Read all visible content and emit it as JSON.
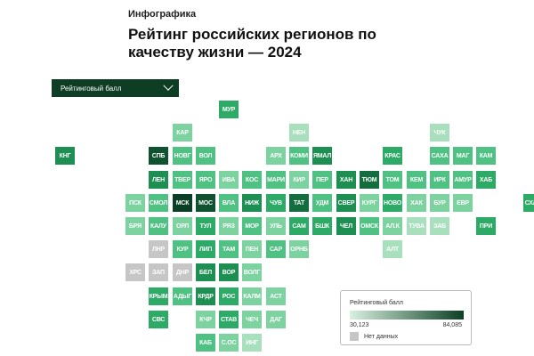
{
  "kicker": "Инфографика",
  "title": "Рейтинг российских регионов по качеству жизни — 2024",
  "selector": {
    "label": "Рейтинговый балл",
    "icon": "chevron-down-icon"
  },
  "legend": {
    "title": "Рейтинговый балл",
    "min": "30,123",
    "max": "84,085",
    "no_data": "Нет данных",
    "color_low": "#d8f1e1",
    "color_high": "#0b3f25",
    "color_no_data": "#c6c6c6"
  },
  "regions": [
    {
      "code": "МУР",
      "col": 7,
      "row": 0,
      "level": 4
    },
    {
      "code": "КАР",
      "col": 5,
      "row": 1,
      "level": 2
    },
    {
      "code": "НЕН",
      "col": 10,
      "row": 1,
      "level": 1
    },
    {
      "code": "ЧУК",
      "col": 16,
      "row": 1,
      "level": 1
    },
    {
      "code": "КНГ",
      "col": 0,
      "row": 2,
      "level": 5
    },
    {
      "code": "СПБ",
      "col": 4,
      "row": 2,
      "level": 7
    },
    {
      "code": "НОВГ",
      "col": 5,
      "row": 2,
      "level": 3
    },
    {
      "code": "ВОЛ",
      "col": 6,
      "row": 2,
      "level": 3
    },
    {
      "code": "АРХ",
      "col": 9,
      "row": 2,
      "level": 2
    },
    {
      "code": "КОМИ",
      "col": 10,
      "row": 2,
      "level": 3
    },
    {
      "code": "ЯМАЛ",
      "col": 11,
      "row": 2,
      "level": 5
    },
    {
      "code": "КРАС",
      "col": 14,
      "row": 2,
      "level": 4
    },
    {
      "code": "САХА",
      "col": 16,
      "row": 2,
      "level": 3
    },
    {
      "code": "МАГ",
      "col": 17,
      "row": 2,
      "level": 3
    },
    {
      "code": "КАМ",
      "col": 18,
      "row": 2,
      "level": 3
    },
    {
      "code": "ЛЕН",
      "col": 4,
      "row": 3,
      "level": 5
    },
    {
      "code": "ТВЕР",
      "col": 5,
      "row": 3,
      "level": 3
    },
    {
      "code": "ЯРО",
      "col": 6,
      "row": 3,
      "level": 3
    },
    {
      "code": "ИВА",
      "col": 7,
      "row": 3,
      "level": 2
    },
    {
      "code": "КОС",
      "col": 8,
      "row": 3,
      "level": 3
    },
    {
      "code": "МАРИ",
      "col": 9,
      "row": 3,
      "level": 3
    },
    {
      "code": "КИР",
      "col": 10,
      "row": 3,
      "level": 2
    },
    {
      "code": "ПЕР",
      "col": 11,
      "row": 3,
      "level": 3
    },
    {
      "code": "ХАН",
      "col": 12,
      "row": 3,
      "level": 5
    },
    {
      "code": "ТЮМ",
      "col": 13,
      "row": 3,
      "level": 6
    },
    {
      "code": "ТОМ",
      "col": 14,
      "row": 3,
      "level": 3
    },
    {
      "code": "КЕМ",
      "col": 15,
      "row": 3,
      "level": 3
    },
    {
      "code": "ИРК",
      "col": 16,
      "row": 3,
      "level": 3
    },
    {
      "code": "АМУР",
      "col": 17,
      "row": 3,
      "level": 3
    },
    {
      "code": "ХАБ",
      "col": 18,
      "row": 3,
      "level": 4
    },
    {
      "code": "ПСК",
      "col": 3,
      "row": 4,
      "level": 2
    },
    {
      "code": "СМОЛ",
      "col": 4,
      "row": 4,
      "level": 3
    },
    {
      "code": "МСК",
      "col": 5,
      "row": 4,
      "level": 8
    },
    {
      "code": "МОС",
      "col": 6,
      "row": 4,
      "level": 7
    },
    {
      "code": "ВЛА",
      "col": 7,
      "row": 4,
      "level": 3
    },
    {
      "code": "НИЖ",
      "col": 8,
      "row": 4,
      "level": 5
    },
    {
      "code": "ЧУВ",
      "col": 9,
      "row": 4,
      "level": 4
    },
    {
      "code": "ТАТ",
      "col": 10,
      "row": 4,
      "level": 6
    },
    {
      "code": "УДМ",
      "col": 11,
      "row": 4,
      "level": 3
    },
    {
      "code": "СВЕР",
      "col": 12,
      "row": 4,
      "level": 5
    },
    {
      "code": "КУРГ",
      "col": 13,
      "row": 4,
      "level": 2
    },
    {
      "code": "НОВО",
      "col": 14,
      "row": 4,
      "level": 4
    },
    {
      "code": "ХАК",
      "col": 15,
      "row": 4,
      "level": 2
    },
    {
      "code": "БУР",
      "col": 16,
      "row": 4,
      "level": 2
    },
    {
      "code": "ЕВР",
      "col": 17,
      "row": 4,
      "level": 2
    },
    {
      "code": "СХЛН",
      "col": 20,
      "row": 4,
      "level": 4
    },
    {
      "code": "БРЯ",
      "col": 3,
      "row": 5,
      "level": 2
    },
    {
      "code": "КАЛУ",
      "col": 4,
      "row": 5,
      "level": 3
    },
    {
      "code": "ОРЛ",
      "col": 5,
      "row": 5,
      "level": 2
    },
    {
      "code": "ТУЛ",
      "col": 6,
      "row": 5,
      "level": 4
    },
    {
      "code": "РЯЗ",
      "col": 7,
      "row": 5,
      "level": 2
    },
    {
      "code": "МОР",
      "col": 8,
      "row": 5,
      "level": 3
    },
    {
      "code": "УЛЬ",
      "col": 9,
      "row": 5,
      "level": 2
    },
    {
      "code": "САМ",
      "col": 10,
      "row": 5,
      "level": 4
    },
    {
      "code": "БШК",
      "col": 11,
      "row": 5,
      "level": 4
    },
    {
      "code": "ЧЕЛ",
      "col": 12,
      "row": 5,
      "level": 5
    },
    {
      "code": "ОМСК",
      "col": 13,
      "row": 5,
      "level": 3
    },
    {
      "code": "АЛ.К",
      "col": 14,
      "row": 5,
      "level": 2
    },
    {
      "code": "ТУВА",
      "col": 15,
      "row": 5,
      "level": 1
    },
    {
      "code": "ЗАБ",
      "col": 16,
      "row": 5,
      "level": 1
    },
    {
      "code": "ПРИ",
      "col": 18,
      "row": 5,
      "level": 4
    },
    {
      "code": "ЛНР",
      "col": 4,
      "row": 6,
      "level": 0
    },
    {
      "code": "КУР",
      "col": 5,
      "row": 6,
      "level": 3
    },
    {
      "code": "ЛИП",
      "col": 6,
      "row": 6,
      "level": 4
    },
    {
      "code": "ТАМ",
      "col": 7,
      "row": 6,
      "level": 3
    },
    {
      "code": "ПЕН",
      "col": 8,
      "row": 6,
      "level": 2
    },
    {
      "code": "САР",
      "col": 9,
      "row": 6,
      "level": 3
    },
    {
      "code": "ОРНБ",
      "col": 10,
      "row": 6,
      "level": 2
    },
    {
      "code": "АЛТ",
      "col": 14,
      "row": 6,
      "level": 1
    },
    {
      "code": "ХРС",
      "col": 3,
      "row": 7,
      "level": 0
    },
    {
      "code": "ЗАП",
      "col": 4,
      "row": 7,
      "level": 0
    },
    {
      "code": "ДНР",
      "col": 5,
      "row": 7,
      "level": 0
    },
    {
      "code": "БЕЛ",
      "col": 6,
      "row": 7,
      "level": 5
    },
    {
      "code": "ВОР",
      "col": 7,
      "row": 7,
      "level": 5
    },
    {
      "code": "ВОЛГ",
      "col": 8,
      "row": 7,
      "level": 2
    },
    {
      "code": "КРЫМ",
      "col": 4,
      "row": 8,
      "level": 4
    },
    {
      "code": "АДЫГ",
      "col": 5,
      "row": 8,
      "level": 3
    },
    {
      "code": "КРДР",
      "col": 6,
      "row": 8,
      "level": 5
    },
    {
      "code": "РОС",
      "col": 7,
      "row": 8,
      "level": 4
    },
    {
      "code": "КАЛМ",
      "col": 8,
      "row": 8,
      "level": 2
    },
    {
      "code": "АСТ",
      "col": 9,
      "row": 8,
      "level": 2
    },
    {
      "code": "СВС",
      "col": 4,
      "row": 9,
      "level": 4
    },
    {
      "code": "КЧР",
      "col": 6,
      "row": 9,
      "level": 2
    },
    {
      "code": "СТАВ",
      "col": 7,
      "row": 9,
      "level": 4
    },
    {
      "code": "ЧЕЧ",
      "col": 8,
      "row": 9,
      "level": 2
    },
    {
      "code": "ДАГ",
      "col": 9,
      "row": 9,
      "level": 2
    },
    {
      "code": "КАБ",
      "col": 6,
      "row": 10,
      "level": 3
    },
    {
      "code": "С.ОС",
      "col": 7,
      "row": 10,
      "level": 2
    },
    {
      "code": "ИНГ",
      "col": 8,
      "row": 10,
      "level": 1
    }
  ],
  "level_colors": [
    "#c6c6c6",
    "#a8e0bd",
    "#7dd3a0",
    "#4fc283",
    "#2daa66",
    "#1e8f52",
    "#146d3e",
    "#0e5230",
    "#0b3f25"
  ],
  "level_text_colors": [
    "#ffffff",
    "#ffffff",
    "#ffffff",
    "#ffffff",
    "#ffffff",
    "#ffffff",
    "#ffffff",
    "#ffffff",
    "#ffffff"
  ]
}
